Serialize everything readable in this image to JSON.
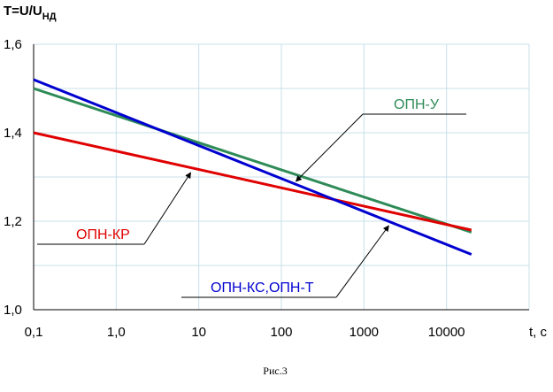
{
  "chart_data": {
    "type": "line",
    "title": "",
    "ylabel_main": "T=U/U",
    "ylabel_sub": "НД",
    "xlabel": "t, c",
    "caption": "Рис.3",
    "xscale": "log",
    "xlim": [
      0.1,
      100000
    ],
    "ylim": [
      1.0,
      1.6
    ],
    "grid": true,
    "x_tick_labels": [
      "0,1",
      "1,0",
      "10",
      "100",
      "1000",
      "10000"
    ],
    "y_tick_labels": [
      "1,0",
      "1,2",
      "1,4",
      "1,6"
    ],
    "series": [
      {
        "name": "ОПН-У",
        "color": "#2e8b57",
        "x": [
          0.1,
          20000
        ],
        "y": [
          1.5,
          1.175
        ]
      },
      {
        "name": "ОПН-КР",
        "color": "#e00000",
        "x": [
          0.1,
          20000
        ],
        "y": [
          1.4,
          1.18
        ]
      },
      {
        "name": "ОПН-КС,ОПН-Т",
        "color": "#0000d0",
        "x": [
          0.1,
          20000
        ],
        "y": [
          1.52,
          1.125
        ]
      }
    ],
    "annotations": [
      {
        "text": "ОПН-У",
        "color": "#2e8b57",
        "points_to_x": 150,
        "points_to_y": 1.29
      },
      {
        "text": "ОПН-КР",
        "color": "#e00000",
        "points_to_x": 8,
        "points_to_y": 1.31
      },
      {
        "text": "ОПН-КС,ОПН-Т",
        "color": "#0000d0",
        "points_to_x": 2000,
        "points_to_y": 1.19
      }
    ]
  }
}
